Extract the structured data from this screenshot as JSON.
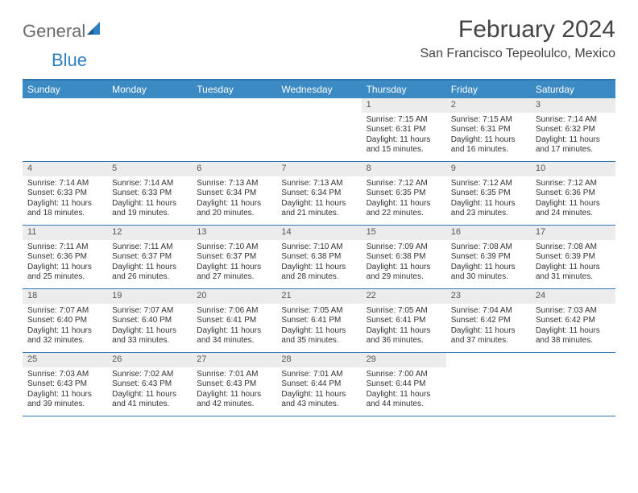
{
  "logo": {
    "general": "General",
    "blue": "Blue"
  },
  "title": "February 2024",
  "location": "San Francisco Tepeolulco, Mexico",
  "colors": {
    "header_bg": "#3b8ac4",
    "border": "#2d75b5",
    "daynum_bg": "#ececec",
    "text": "#333333",
    "logo_gray": "#6b6b6b",
    "logo_blue": "#2d7fc1"
  },
  "day_headers": [
    "Sunday",
    "Monday",
    "Tuesday",
    "Wednesday",
    "Thursday",
    "Friday",
    "Saturday"
  ],
  "weeks": [
    [
      null,
      null,
      null,
      null,
      {
        "n": "1",
        "sr": "Sunrise: 7:15 AM",
        "ss": "Sunset: 6:31 PM",
        "dl": "Daylight: 11 hours and 15 minutes."
      },
      {
        "n": "2",
        "sr": "Sunrise: 7:15 AM",
        "ss": "Sunset: 6:31 PM",
        "dl": "Daylight: 11 hours and 16 minutes."
      },
      {
        "n": "3",
        "sr": "Sunrise: 7:14 AM",
        "ss": "Sunset: 6:32 PM",
        "dl": "Daylight: 11 hours and 17 minutes."
      }
    ],
    [
      {
        "n": "4",
        "sr": "Sunrise: 7:14 AM",
        "ss": "Sunset: 6:33 PM",
        "dl": "Daylight: 11 hours and 18 minutes."
      },
      {
        "n": "5",
        "sr": "Sunrise: 7:14 AM",
        "ss": "Sunset: 6:33 PM",
        "dl": "Daylight: 11 hours and 19 minutes."
      },
      {
        "n": "6",
        "sr": "Sunrise: 7:13 AM",
        "ss": "Sunset: 6:34 PM",
        "dl": "Daylight: 11 hours and 20 minutes."
      },
      {
        "n": "7",
        "sr": "Sunrise: 7:13 AM",
        "ss": "Sunset: 6:34 PM",
        "dl": "Daylight: 11 hours and 21 minutes."
      },
      {
        "n": "8",
        "sr": "Sunrise: 7:12 AM",
        "ss": "Sunset: 6:35 PM",
        "dl": "Daylight: 11 hours and 22 minutes."
      },
      {
        "n": "9",
        "sr": "Sunrise: 7:12 AM",
        "ss": "Sunset: 6:35 PM",
        "dl": "Daylight: 11 hours and 23 minutes."
      },
      {
        "n": "10",
        "sr": "Sunrise: 7:12 AM",
        "ss": "Sunset: 6:36 PM",
        "dl": "Daylight: 11 hours and 24 minutes."
      }
    ],
    [
      {
        "n": "11",
        "sr": "Sunrise: 7:11 AM",
        "ss": "Sunset: 6:36 PM",
        "dl": "Daylight: 11 hours and 25 minutes."
      },
      {
        "n": "12",
        "sr": "Sunrise: 7:11 AM",
        "ss": "Sunset: 6:37 PM",
        "dl": "Daylight: 11 hours and 26 minutes."
      },
      {
        "n": "13",
        "sr": "Sunrise: 7:10 AM",
        "ss": "Sunset: 6:37 PM",
        "dl": "Daylight: 11 hours and 27 minutes."
      },
      {
        "n": "14",
        "sr": "Sunrise: 7:10 AM",
        "ss": "Sunset: 6:38 PM",
        "dl": "Daylight: 11 hours and 28 minutes."
      },
      {
        "n": "15",
        "sr": "Sunrise: 7:09 AM",
        "ss": "Sunset: 6:38 PM",
        "dl": "Daylight: 11 hours and 29 minutes."
      },
      {
        "n": "16",
        "sr": "Sunrise: 7:08 AM",
        "ss": "Sunset: 6:39 PM",
        "dl": "Daylight: 11 hours and 30 minutes."
      },
      {
        "n": "17",
        "sr": "Sunrise: 7:08 AM",
        "ss": "Sunset: 6:39 PM",
        "dl": "Daylight: 11 hours and 31 minutes."
      }
    ],
    [
      {
        "n": "18",
        "sr": "Sunrise: 7:07 AM",
        "ss": "Sunset: 6:40 PM",
        "dl": "Daylight: 11 hours and 32 minutes."
      },
      {
        "n": "19",
        "sr": "Sunrise: 7:07 AM",
        "ss": "Sunset: 6:40 PM",
        "dl": "Daylight: 11 hours and 33 minutes."
      },
      {
        "n": "20",
        "sr": "Sunrise: 7:06 AM",
        "ss": "Sunset: 6:41 PM",
        "dl": "Daylight: 11 hours and 34 minutes."
      },
      {
        "n": "21",
        "sr": "Sunrise: 7:05 AM",
        "ss": "Sunset: 6:41 PM",
        "dl": "Daylight: 11 hours and 35 minutes."
      },
      {
        "n": "22",
        "sr": "Sunrise: 7:05 AM",
        "ss": "Sunset: 6:41 PM",
        "dl": "Daylight: 11 hours and 36 minutes."
      },
      {
        "n": "23",
        "sr": "Sunrise: 7:04 AM",
        "ss": "Sunset: 6:42 PM",
        "dl": "Daylight: 11 hours and 37 minutes."
      },
      {
        "n": "24",
        "sr": "Sunrise: 7:03 AM",
        "ss": "Sunset: 6:42 PM",
        "dl": "Daylight: 11 hours and 38 minutes."
      }
    ],
    [
      {
        "n": "25",
        "sr": "Sunrise: 7:03 AM",
        "ss": "Sunset: 6:43 PM",
        "dl": "Daylight: 11 hours and 39 minutes."
      },
      {
        "n": "26",
        "sr": "Sunrise: 7:02 AM",
        "ss": "Sunset: 6:43 PM",
        "dl": "Daylight: 11 hours and 41 minutes."
      },
      {
        "n": "27",
        "sr": "Sunrise: 7:01 AM",
        "ss": "Sunset: 6:43 PM",
        "dl": "Daylight: 11 hours and 42 minutes."
      },
      {
        "n": "28",
        "sr": "Sunrise: 7:01 AM",
        "ss": "Sunset: 6:44 PM",
        "dl": "Daylight: 11 hours and 43 minutes."
      },
      {
        "n": "29",
        "sr": "Sunrise: 7:00 AM",
        "ss": "Sunset: 6:44 PM",
        "dl": "Daylight: 11 hours and 44 minutes."
      },
      null,
      null
    ]
  ]
}
